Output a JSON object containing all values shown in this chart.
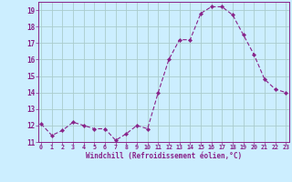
{
  "x": [
    0,
    1,
    2,
    3,
    4,
    5,
    6,
    7,
    8,
    9,
    10,
    11,
    12,
    13,
    14,
    15,
    16,
    17,
    18,
    19,
    20,
    21,
    22,
    23
  ],
  "y": [
    12.1,
    11.4,
    11.7,
    12.2,
    12.0,
    11.8,
    11.8,
    11.1,
    11.5,
    12.0,
    11.8,
    14.0,
    16.0,
    17.2,
    17.2,
    18.8,
    19.2,
    19.2,
    18.7,
    17.5,
    16.3,
    14.8,
    14.2,
    14.0
  ],
  "line_color": "#882288",
  "marker": "D",
  "marker_size": 2.2,
  "bg_color": "#cceeff",
  "grid_color": "#aacccc",
  "tick_color": "#882288",
  "xlabel": "Windchill (Refroidissement éolien,°C)",
  "xlabel_color": "#882288",
  "ylim": [
    11,
    19.5
  ],
  "yticks": [
    11,
    12,
    13,
    14,
    15,
    16,
    17,
    18,
    19
  ],
  "xticks": [
    0,
    1,
    2,
    3,
    4,
    5,
    6,
    7,
    8,
    9,
    10,
    11,
    12,
    13,
    14,
    15,
    16,
    17,
    18,
    19,
    20,
    21,
    22,
    23
  ],
  "xlim": [
    -0.3,
    23.3
  ]
}
